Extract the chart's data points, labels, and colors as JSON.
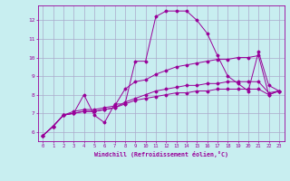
{
  "xlabel": "Windchill (Refroidissement éolien,°C)",
  "background_color": "#c8eef0",
  "grid_color": "#aaaacc",
  "line_color": "#990099",
  "xlim": [
    -0.5,
    23.5
  ],
  "ylim": [
    5.5,
    12.8
  ],
  "xticks": [
    0,
    1,
    2,
    3,
    4,
    5,
    6,
    7,
    8,
    9,
    10,
    11,
    12,
    13,
    14,
    15,
    16,
    17,
    18,
    19,
    20,
    21,
    22,
    23
  ],
  "yticks": [
    6,
    7,
    8,
    9,
    10,
    11,
    12
  ],
  "series": [
    [
      5.8,
      6.3,
      6.9,
      7.0,
      8.0,
      6.9,
      6.5,
      7.5,
      7.5,
      9.8,
      9.8,
      12.2,
      12.5,
      12.5,
      12.5,
      12.0,
      11.3,
      10.1,
      9.0,
      8.6,
      8.2,
      10.3,
      8.5,
      8.2
    ],
    [
      5.8,
      6.3,
      6.9,
      7.1,
      7.2,
      7.2,
      7.3,
      7.4,
      8.3,
      8.7,
      8.8,
      9.1,
      9.3,
      9.5,
      9.6,
      9.7,
      9.8,
      9.9,
      9.9,
      10.0,
      10.0,
      10.1,
      8.0,
      8.2
    ],
    [
      5.8,
      6.3,
      6.9,
      7.0,
      7.1,
      7.1,
      7.2,
      7.3,
      7.6,
      7.8,
      8.0,
      8.2,
      8.3,
      8.4,
      8.5,
      8.5,
      8.6,
      8.6,
      8.7,
      8.7,
      8.7,
      8.7,
      8.1,
      8.2
    ],
    [
      5.8,
      6.3,
      6.9,
      7.0,
      7.1,
      7.1,
      7.2,
      7.3,
      7.5,
      7.7,
      7.8,
      7.9,
      8.0,
      8.1,
      8.1,
      8.2,
      8.2,
      8.3,
      8.3,
      8.3,
      8.3,
      8.3,
      8.0,
      8.2
    ]
  ]
}
